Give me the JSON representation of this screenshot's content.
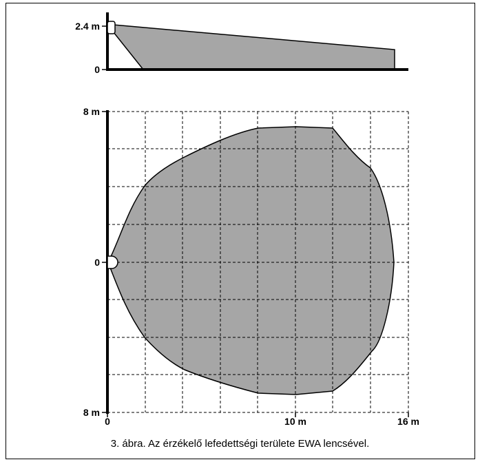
{
  "side_view": {
    "labels": {
      "height": "2.4 m",
      "zero": "0"
    }
  },
  "top_view": {
    "y_labels": {
      "top": "8 m",
      "middle": "0",
      "bottom": "8 m"
    },
    "x_labels": {
      "start": "0",
      "mid": "10 m",
      "end": "16 m"
    }
  },
  "caption": "3. ábra. Az érzékelő lefedettségi területe EWA lencsével.",
  "colors": {
    "coverage_fill": "#a6a6a6",
    "line": "#000000"
  }
}
